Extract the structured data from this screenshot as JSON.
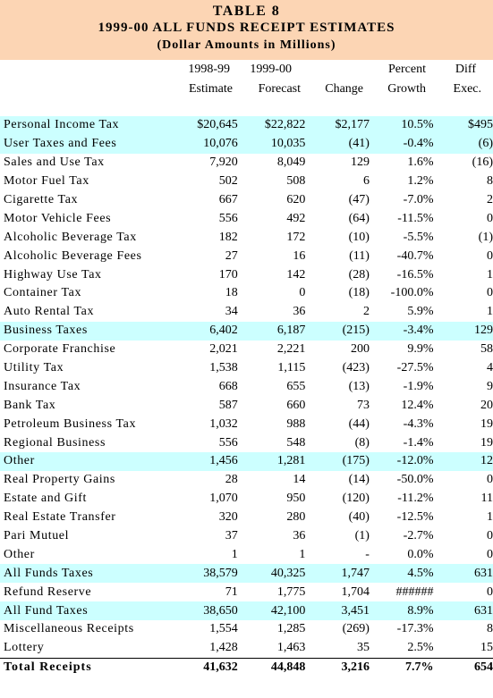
{
  "title": {
    "line1": "TABLE 8",
    "line2": "1999-00 ALL FUNDS RECEIPT ESTIMATES",
    "line3": "(Dollar Amounts in Millions)"
  },
  "columns": {
    "est_line1": "1998-99",
    "est_line2": "Estimate",
    "fc_line1": "1999-00",
    "fc_line2": "Forecast",
    "change": "Change",
    "pct_line1": "Percent",
    "pct_line2": "Growth",
    "diff_line1": "Diff",
    "diff_line2": "Exec."
  },
  "colors": {
    "header_bg": "#fcd5b4",
    "highlight_bg": "#ccffff"
  },
  "rows": [
    {
      "label": "Personal Income Tax",
      "est": "$20,645",
      "fc": "$22,822",
      "chg": "$2,177",
      "pct": "10.5%",
      "diff": "$495",
      "hl": true
    },
    {
      "label": "User Taxes and Fees",
      "est": "10,076",
      "fc": "10,035",
      "chg": "(41)",
      "pct": "-0.4%",
      "diff": "(6)",
      "hl": true
    },
    {
      "label": "Sales and Use Tax",
      "est": "7,920",
      "fc": "8,049",
      "chg": "129",
      "pct": "1.6%",
      "diff": "(16)"
    },
    {
      "label": "Motor Fuel Tax",
      "est": "502",
      "fc": "508",
      "chg": "6",
      "pct": "1.2%",
      "diff": "8"
    },
    {
      "label": "Cigarette Tax",
      "est": "667",
      "fc": "620",
      "chg": "(47)",
      "pct": "-7.0%",
      "diff": "2"
    },
    {
      "label": "Motor Vehicle Fees",
      "est": "556",
      "fc": "492",
      "chg": "(64)",
      "pct": "-11.5%",
      "diff": "0"
    },
    {
      "label": "Alcoholic Beverage Tax",
      "est": "182",
      "fc": "172",
      "chg": "(10)",
      "pct": "-5.5%",
      "diff": "(1)"
    },
    {
      "label": "Alcoholic Beverage Fees",
      "est": "27",
      "fc": "16",
      "chg": "(11)",
      "pct": "-40.7%",
      "diff": "0"
    },
    {
      "label": "Highway Use Tax",
      "est": "170",
      "fc": "142",
      "chg": "(28)",
      "pct": "-16.5%",
      "diff": "1"
    },
    {
      "label": "Container Tax",
      "est": "18",
      "fc": "0",
      "chg": "(18)",
      "pct": "-100.0%",
      "diff": "0"
    },
    {
      "label": "Auto Rental Tax",
      "est": "34",
      "fc": "36",
      "chg": "2",
      "pct": "5.9%",
      "diff": "1"
    },
    {
      "label": "Business Taxes",
      "est": "6,402",
      "fc": "6,187",
      "chg": "(215)",
      "pct": "-3.4%",
      "diff": "129",
      "hl": true
    },
    {
      "label": "Corporate Franchise",
      "est": "2,021",
      "fc": "2,221",
      "chg": "200",
      "pct": "9.9%",
      "diff": "58"
    },
    {
      "label": "Utility Tax",
      "est": "1,538",
      "fc": "1,115",
      "chg": "(423)",
      "pct": "-27.5%",
      "diff": "4"
    },
    {
      "label": "Insurance Tax",
      "est": "668",
      "fc": "655",
      "chg": "(13)",
      "pct": "-1.9%",
      "diff": "9"
    },
    {
      "label": "Bank Tax",
      "est": "587",
      "fc": "660",
      "chg": "73",
      "pct": "12.4%",
      "diff": "20"
    },
    {
      "label": "Petroleum Business Tax",
      "est": "1,032",
      "fc": "988",
      "chg": "(44)",
      "pct": "-4.3%",
      "diff": "19"
    },
    {
      "label": "Regional Business",
      "est": "556",
      "fc": "548",
      "chg": "(8)",
      "pct": "-1.4%",
      "diff": "19"
    },
    {
      "label": "Other",
      "est": "1,456",
      "fc": "1,281",
      "chg": "(175)",
      "pct": "-12.0%",
      "diff": "12",
      "hl": true
    },
    {
      "label": "Real Property Gains",
      "est": "28",
      "fc": "14",
      "chg": "(14)",
      "pct": "-50.0%",
      "diff": "0"
    },
    {
      "label": "Estate and Gift",
      "est": "1,070",
      "fc": "950",
      "chg": "(120)",
      "pct": "-11.2%",
      "diff": "11"
    },
    {
      "label": "Real Estate Transfer",
      "est": "320",
      "fc": "280",
      "chg": "(40)",
      "pct": "-12.5%",
      "diff": "1"
    },
    {
      "label": "Pari Mutuel",
      "est": "37",
      "fc": "36",
      "chg": "(1)",
      "pct": "-2.7%",
      "diff": "0"
    },
    {
      "label": "Other",
      "est": "1",
      "fc": "1",
      "chg": "-",
      "pct": "0.0%",
      "diff": "0"
    },
    {
      "label": "All Funds Taxes",
      "est": "38,579",
      "fc": "40,325",
      "chg": "1,747",
      "pct": "4.5%",
      "diff": "631",
      "hl": true
    },
    {
      "label": "Refund Reserve",
      "est": "71",
      "fc": "1,775",
      "chg": "1,704",
      "pct": "######",
      "diff": "0"
    },
    {
      "label": "All Fund Taxes",
      "est": "38,650",
      "fc": "42,100",
      "chg": "3,451",
      "pct": "8.9%",
      "diff": "631",
      "hl": true
    },
    {
      "label": "Miscellaneous Receipts",
      "est": "1,554",
      "fc": "1,285",
      "chg": "(269)",
      "pct": "-17.3%",
      "diff": "8"
    },
    {
      "label": "Lottery",
      "est": "1,428",
      "fc": "1,463",
      "chg": "35",
      "pct": "2.5%",
      "diff": "15"
    },
    {
      "label": "Total Receipts",
      "est": "41,632",
      "fc": "44,848",
      "chg": "3,216",
      "pct": "7.7%",
      "diff": "654",
      "total": true
    }
  ]
}
